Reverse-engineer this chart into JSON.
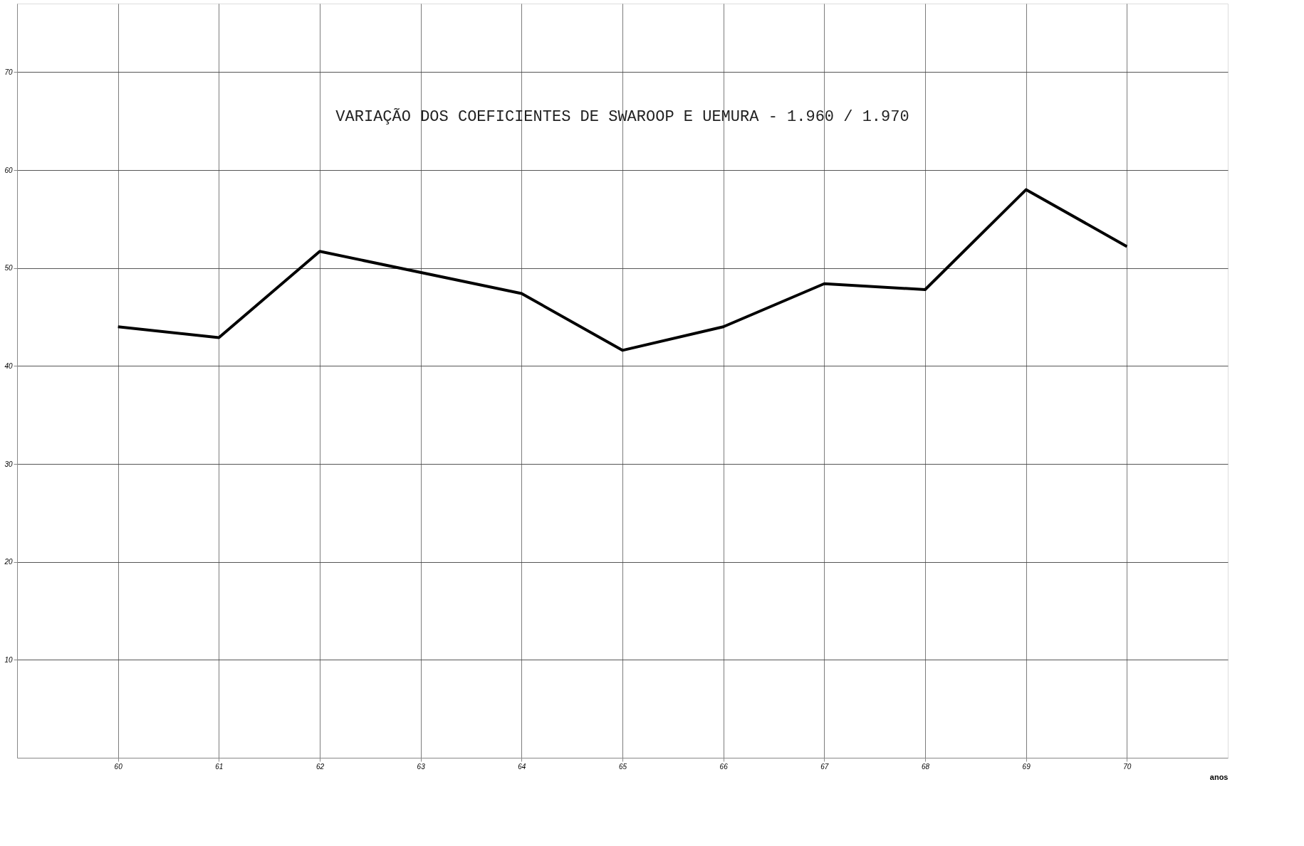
{
  "chart_data": {
    "type": "line",
    "title": "VARIAÇÃO DOS COEFICIENTES DE  SWAROOP  E  UEMURA - 1.960 / 1.970",
    "xlabel": "anos",
    "x": [
      60,
      61,
      62,
      64,
      65,
      66,
      67,
      68,
      69,
      70
    ],
    "series": [
      {
        "color": "#000000",
        "values": [
          44.0,
          42.9,
          51.7,
          47.4,
          41.6,
          44.0,
          48.4,
          47.8,
          58.0,
          52.2
        ]
      }
    ],
    "xlim": [
      59,
      71
    ],
    "xticks": [
      60,
      61,
      62,
      63,
      64,
      65,
      66,
      67,
      68,
      69,
      70
    ],
    "ylim": [
      0,
      77
    ],
    "yticks": [
      10,
      20,
      30,
      40,
      50,
      60,
      70
    ],
    "grid": true,
    "marker": "none",
    "line_style": "solid"
  }
}
